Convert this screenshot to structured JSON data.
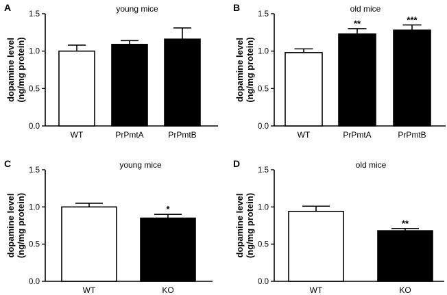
{
  "chart_data": [
    {
      "type": "bar",
      "panel": "A",
      "title": "young mice",
      "ylabel": [
        "dopamine level",
        "(ng/mg protein)"
      ],
      "ylim": [
        0,
        1.5
      ],
      "yticks": [
        "0.0",
        "0.5",
        "1.0",
        "1.5"
      ],
      "categories": [
        "WT",
        "PrPmtA",
        "PrPmtB"
      ],
      "values": [
        1.0,
        1.09,
        1.16
      ],
      "errors": [
        0.08,
        0.05,
        0.15
      ],
      "fills": [
        "#ffffff",
        "#000000",
        "#000000"
      ],
      "significance": [
        "",
        "",
        ""
      ]
    },
    {
      "type": "bar",
      "panel": "B",
      "title": "old mice",
      "ylabel": [
        "dopamine level",
        "(ng/mg protein)"
      ],
      "ylim": [
        0,
        1.5
      ],
      "yticks": [
        "0.0",
        "0.5",
        "1.0",
        "1.5"
      ],
      "categories": [
        "WT",
        "PrPmtA",
        "PrPmtB"
      ],
      "values": [
        0.98,
        1.23,
        1.28
      ],
      "errors": [
        0.05,
        0.07,
        0.07
      ],
      "fills": [
        "#ffffff",
        "#000000",
        "#000000"
      ],
      "significance": [
        "",
        "**",
        "***"
      ]
    },
    {
      "type": "bar",
      "panel": "C",
      "title": "young mice",
      "ylabel": [
        "dopamine level",
        "(ng/mg protein)"
      ],
      "ylim": [
        0,
        1.5
      ],
      "yticks": [
        "0.0",
        "0.5",
        "1.0",
        "1.5"
      ],
      "categories": [
        "WT",
        "KO"
      ],
      "values": [
        1.0,
        0.85
      ],
      "errors": [
        0.05,
        0.05
      ],
      "fills": [
        "#ffffff",
        "#000000"
      ],
      "significance": [
        "",
        "*"
      ]
    },
    {
      "type": "bar",
      "panel": "D",
      "title": "old mice",
      "ylabel": [
        "dopamine level",
        "(ng/mg protein)"
      ],
      "ylim": [
        0,
        1.5
      ],
      "yticks": [
        "0.0",
        "0.5",
        "1.0",
        "1.5"
      ],
      "categories": [
        "WT",
        "KO"
      ],
      "values": [
        0.94,
        0.68
      ],
      "errors": [
        0.07,
        0.03
      ],
      "fills": [
        "#ffffff",
        "#000000"
      ],
      "significance": [
        "",
        "**"
      ]
    }
  ]
}
